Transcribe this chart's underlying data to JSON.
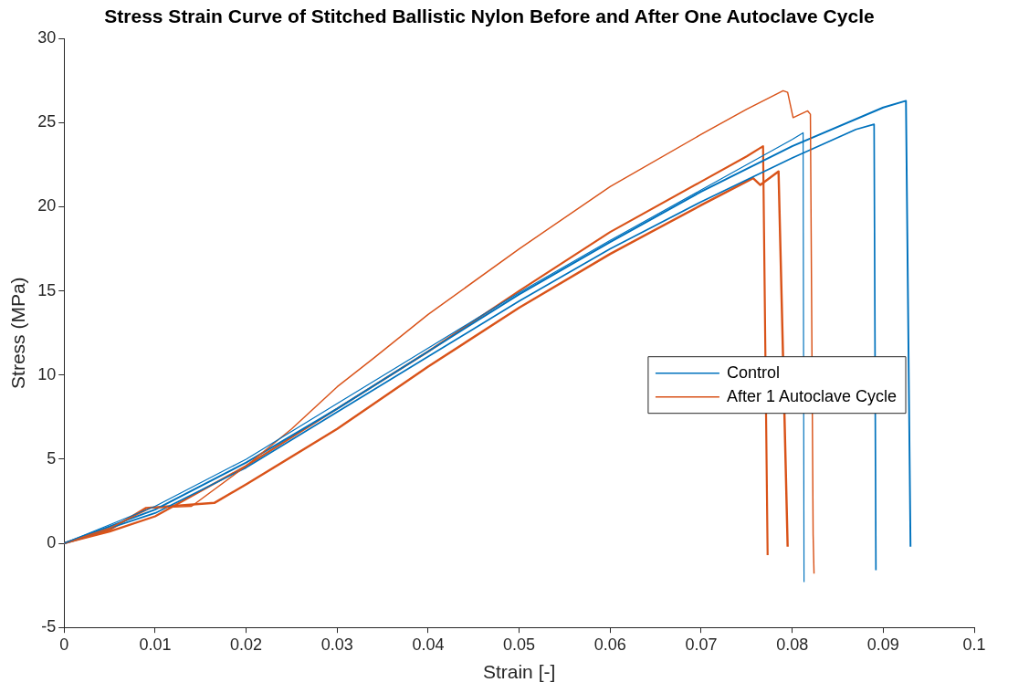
{
  "chart_data": {
    "type": "line",
    "title": "Stress Strain Curve of Stitched Ballistic Nylon Before and After One Autoclave Cycle",
    "xlabel": "Strain [-]",
    "ylabel": "Stress (MPa)",
    "xlim": [
      0,
      0.1
    ],
    "xticks": [
      0,
      0.01,
      0.02,
      0.03,
      0.04,
      0.05,
      0.06,
      0.07,
      0.08,
      0.09,
      0.1
    ],
    "ylim": [
      -5,
      30
    ],
    "yticks": [
      -5,
      0,
      5,
      10,
      15,
      20,
      25,
      30
    ],
    "grid": false,
    "legend": "right",
    "marker": "none",
    "line_style": "solid",
    "series": [
      {
        "name": "Control",
        "color": "#0072bd",
        "x": [
          0,
          0.01,
          0.02,
          0.03,
          0.04,
          0.05,
          0.06,
          0.07,
          0.08,
          0.0812,
          0.0813
        ],
        "values": [
          0,
          2.2,
          5.0,
          8.3,
          11.6,
          14.9,
          18.0,
          21.0,
          24.0,
          24.4,
          -2.3
        ]
      },
      {
        "name": "After 1 Autoclave Cycle",
        "color": "#d95319",
        "x": [
          0,
          0.005,
          0.0095,
          0.014,
          0.02,
          0.025,
          0.03,
          0.034,
          0.04,
          0.05,
          0.06,
          0.07,
          0.075,
          0.079,
          0.0795,
          0.0801,
          0.0817,
          0.082,
          0.0823,
          0.0824
        ],
        "values": [
          0,
          0.9,
          2.1,
          2.2,
          4.6,
          6.8,
          9.3,
          11.0,
          13.6,
          17.5,
          21.2,
          24.3,
          25.8,
          26.9,
          26.8,
          25.3,
          25.7,
          25.5,
          0.5,
          -1.8
        ]
      },
      {
        "color": "#0072bd",
        "x": [
          0,
          0.01,
          0.02,
          0.03,
          0.04,
          0.05,
          0.06,
          0.07,
          0.08,
          0.087,
          0.089,
          0.0892
        ],
        "values": [
          0,
          1.8,
          4.5,
          7.8,
          11.1,
          14.4,
          17.5,
          20.3,
          22.9,
          24.6,
          24.9,
          -1.6
        ]
      },
      {
        "color": "#0072bd",
        "x": [
          0,
          0.01,
          0.02,
          0.03,
          0.04,
          0.05,
          0.06,
          0.07,
          0.08,
          0.09,
          0.0925,
          0.093
        ],
        "values": [
          0,
          2.0,
          4.8,
          8.0,
          11.4,
          14.8,
          17.9,
          20.9,
          23.6,
          25.9,
          26.3,
          -0.2
        ]
      },
      {
        "color": "#d95319",
        "x": [
          0,
          0.005,
          0.01,
          0.02,
          0.03,
          0.04,
          0.05,
          0.06,
          0.07,
          0.075,
          0.0768,
          0.0773
        ],
        "values": [
          0,
          0.7,
          1.6,
          4.6,
          8.0,
          11.4,
          15.0,
          18.5,
          21.5,
          23.0,
          23.6,
          -0.7
        ]
      },
      {
        "color": "#d95319",
        "x": [
          0,
          0.005,
          0.009,
          0.0165,
          0.02,
          0.03,
          0.04,
          0.05,
          0.06,
          0.07,
          0.0757,
          0.0765,
          0.0785,
          0.0795
        ],
        "values": [
          0,
          0.8,
          2.1,
          2.4,
          3.5,
          6.8,
          10.5,
          14.0,
          17.2,
          20.1,
          21.7,
          21.3,
          22.1,
          -0.2
        ]
      }
    ]
  }
}
